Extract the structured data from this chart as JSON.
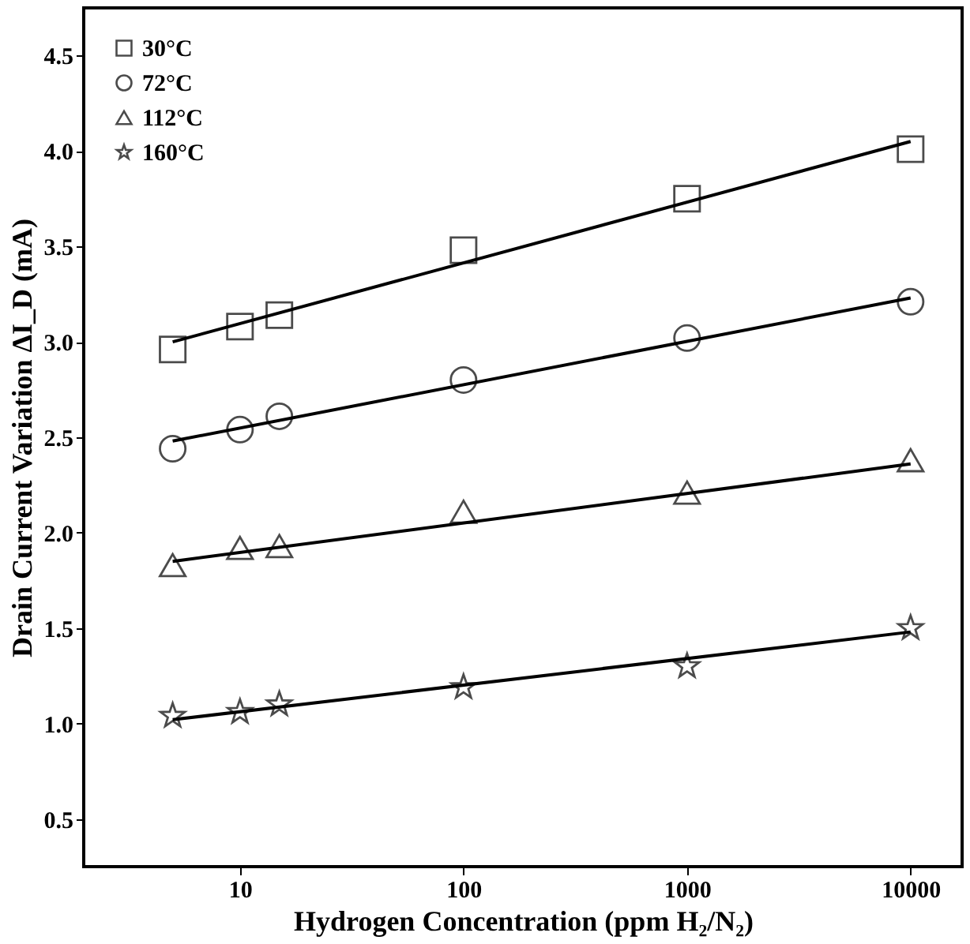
{
  "chart_data": {
    "type": "scatter",
    "xlabel": "Hydrogen Concentration (ppm H₂/N₂)",
    "ylabel": "Drain Current Variation ΔI_D (mA)",
    "log": "x",
    "xlim": [
      2,
      17000
    ],
    "xticks": [
      10,
      100,
      1000,
      10000
    ],
    "ylim": [
      0.25,
      4.75
    ],
    "yticks": [
      0.5,
      {
        "value": 1,
        "label": "1.0"
      },
      1.5,
      {
        "value": 2,
        "label": "2.0"
      },
      2.5,
      {
        "value": 3,
        "label": "3.0"
      },
      3.5,
      {
        "value": 4,
        "label": "4.0"
      },
      4.5
    ],
    "grid": false,
    "legend": "top left",
    "series": [
      {
        "name": "30°C",
        "marker": "square",
        "color": "#000000",
        "x": [
          5,
          10,
          15,
          100,
          1000,
          10000
        ],
        "values": [
          2.96,
          3.08,
          3.14,
          3.48,
          3.75,
          4.01
        ]
      },
      {
        "name": "72°C",
        "marker": "circle",
        "color": "#000000",
        "x": [
          5,
          10,
          15,
          100,
          1000,
          10000
        ],
        "values": [
          2.44,
          2.54,
          2.61,
          2.8,
          3.02,
          3.21
        ]
      },
      {
        "name": "112°C",
        "marker": "triangle",
        "color": "#000000",
        "x": [
          5,
          10,
          15,
          100,
          1000,
          10000
        ],
        "values": [
          1.83,
          1.92,
          1.93,
          2.11,
          2.21,
          2.38
        ]
      },
      {
        "name": "160°C",
        "marker": "star",
        "color": "#000000",
        "x": [
          5,
          10,
          15,
          100,
          1000,
          10000
        ],
        "values": [
          1.04,
          1.06,
          1.1,
          1.19,
          1.3,
          1.5
        ]
      },
      {
        "type": "line",
        "line_style": "solid",
        "color": "#000000",
        "x": [
          5,
          10000
        ],
        "values": [
          3.0,
          4.05
        ]
      },
      {
        "type": "line",
        "line_style": "solid",
        "color": "#000000",
        "x": [
          5,
          10000
        ],
        "values": [
          2.48,
          3.23
        ]
      },
      {
        "type": "line",
        "line_style": "solid",
        "color": "#000000",
        "x": [
          5,
          10000
        ],
        "values": [
          1.85,
          2.36
        ]
      },
      {
        "type": "line",
        "line_style": "solid",
        "color": "#000000",
        "x": [
          5,
          10000
        ],
        "values": [
          1.02,
          1.48
        ]
      }
    ]
  }
}
